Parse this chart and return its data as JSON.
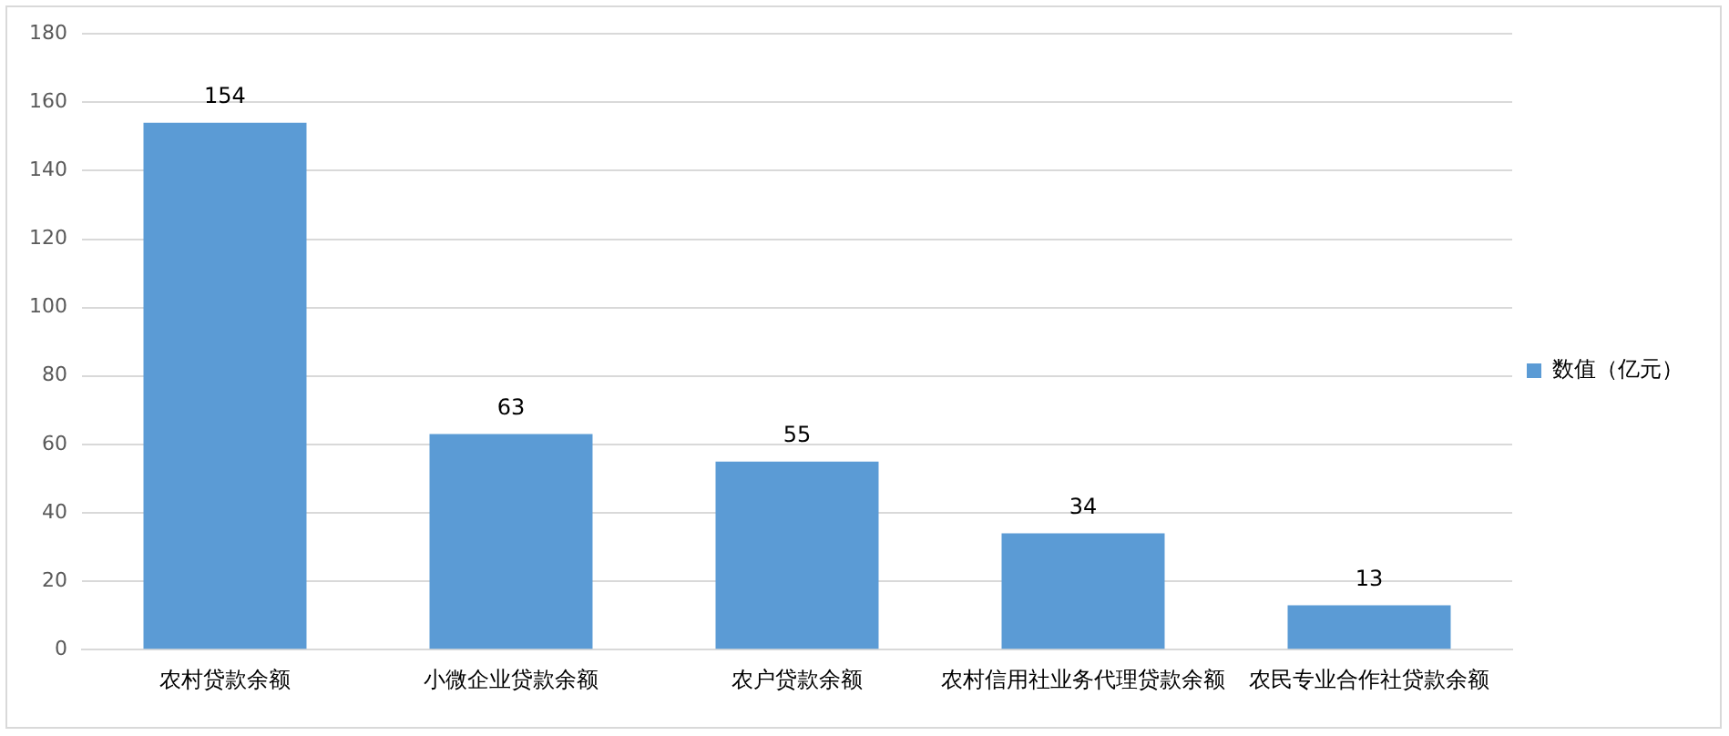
{
  "chart_data": {
    "type": "bar",
    "categories": [
      "农村贷款余额",
      "小微企业贷款余额",
      "农户贷款余额",
      "农村信用社业务代理贷款余额",
      "农民专业合作社贷款余额"
    ],
    "series": [
      {
        "name": "数值（亿元）",
        "color": "#5b9bd5",
        "values": [
          154,
          63,
          55,
          34,
          13
        ]
      }
    ],
    "ylim": [
      0,
      180
    ],
    "yticks": [
      0,
      20,
      40,
      60,
      80,
      100,
      120,
      140,
      160,
      180
    ],
    "grid": "y",
    "legend": "right",
    "data_labels": true
  }
}
